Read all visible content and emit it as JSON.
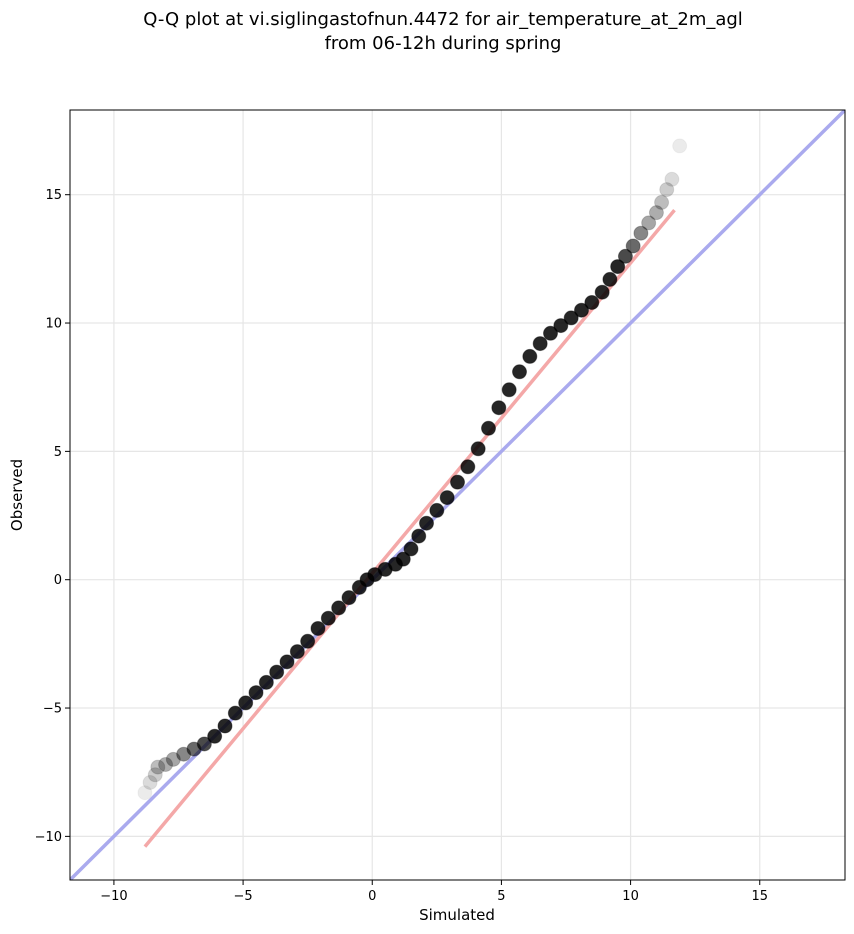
{
  "chart_data": {
    "type": "scatter",
    "title": [
      "Q-Q plot at vi.siglingastofnun.4472 for air_temperature_at_2m_agl",
      "from 06-12h during spring"
    ],
    "xlabel": "Simulated",
    "ylabel": "Observed",
    "xlim": [
      -11.7,
      18.3
    ],
    "ylim": [
      -11.7,
      18.3
    ],
    "xticks": [
      -10,
      -5,
      0,
      5,
      10,
      15
    ],
    "yticks": [
      -10,
      -5,
      0,
      5,
      10,
      15
    ],
    "xtick_labels": [
      "−10",
      "−5",
      "0",
      "5",
      "10",
      "15"
    ],
    "ytick_labels": [
      "−10",
      "−5",
      "0",
      "5",
      "10",
      "15"
    ],
    "grid": true,
    "lines": [
      {
        "role": "identity",
        "color": "#aaaaee",
        "x": [
          -11.7,
          18.3
        ],
        "y": [
          -11.7,
          18.3
        ]
      },
      {
        "role": "fit",
        "color": "#f4a8a8",
        "x": [
          -8.8,
          11.7
        ],
        "y": [
          -10.4,
          14.4
        ]
      }
    ],
    "series": [
      {
        "color": "#000000",
        "points": [
          [
            -8.8,
            -8.3
          ],
          [
            -8.6,
            -7.9
          ],
          [
            -8.4,
            -7.6
          ],
          [
            -8.3,
            -7.3
          ],
          [
            -8.0,
            -7.2
          ],
          [
            -7.7,
            -7.0
          ],
          [
            -7.3,
            -6.8
          ],
          [
            -6.9,
            -6.6
          ],
          [
            -6.5,
            -6.4
          ],
          [
            -6.1,
            -6.1
          ],
          [
            -5.7,
            -5.7
          ],
          [
            -5.3,
            -5.2
          ],
          [
            -4.9,
            -4.8
          ],
          [
            -4.5,
            -4.4
          ],
          [
            -4.1,
            -4.0
          ],
          [
            -3.7,
            -3.6
          ],
          [
            -3.3,
            -3.2
          ],
          [
            -2.9,
            -2.8
          ],
          [
            -2.5,
            -2.4
          ],
          [
            -2.1,
            -1.9
          ],
          [
            -1.7,
            -1.5
          ],
          [
            -1.3,
            -1.1
          ],
          [
            -0.9,
            -0.7
          ],
          [
            -0.5,
            -0.3
          ],
          [
            -0.2,
            0.0
          ],
          [
            0.1,
            0.2
          ],
          [
            0.5,
            0.4
          ],
          [
            0.9,
            0.6
          ],
          [
            1.2,
            0.8
          ],
          [
            1.5,
            1.2
          ],
          [
            1.8,
            1.7
          ],
          [
            2.1,
            2.2
          ],
          [
            2.5,
            2.7
          ],
          [
            2.9,
            3.2
          ],
          [
            3.3,
            3.8
          ],
          [
            3.7,
            4.4
          ],
          [
            4.1,
            5.1
          ],
          [
            4.5,
            5.9
          ],
          [
            4.9,
            6.7
          ],
          [
            5.3,
            7.4
          ],
          [
            5.7,
            8.1
          ],
          [
            6.1,
            8.7
          ],
          [
            6.5,
            9.2
          ],
          [
            6.9,
            9.6
          ],
          [
            7.3,
            9.9
          ],
          [
            7.7,
            10.2
          ],
          [
            8.1,
            10.5
          ],
          [
            8.5,
            10.8
          ],
          [
            8.9,
            11.2
          ],
          [
            9.2,
            11.7
          ],
          [
            9.5,
            12.2
          ],
          [
            9.8,
            12.6
          ],
          [
            10.1,
            13.0
          ],
          [
            10.4,
            13.5
          ],
          [
            10.7,
            13.9
          ],
          [
            11.0,
            14.3
          ],
          [
            11.2,
            14.7
          ],
          [
            11.4,
            15.2
          ],
          [
            11.6,
            15.6
          ],
          [
            11.9,
            16.9
          ]
        ]
      }
    ]
  }
}
